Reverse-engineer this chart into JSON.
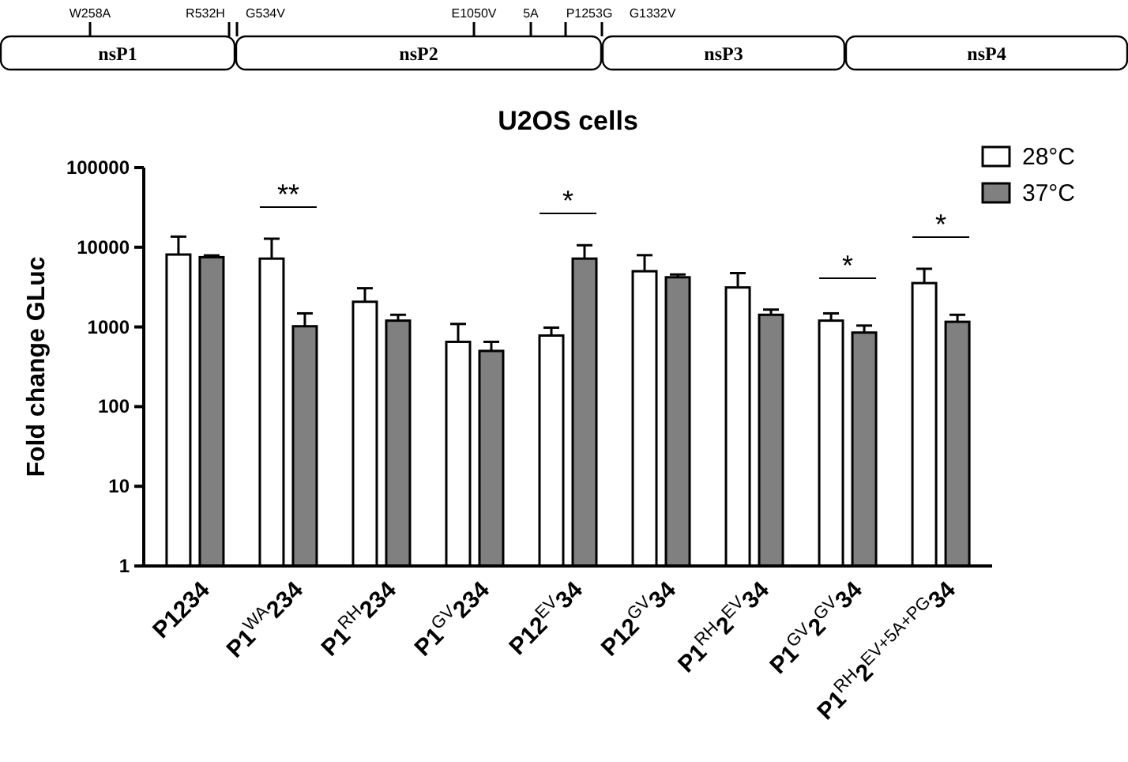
{
  "chart_data": {
    "type": "bar",
    "title": "U2OS cells",
    "ylabel": "Fold change GLuc",
    "categories": [
      "P1234",
      "P1$^{WA}$234",
      "P1$^{RH}$234",
      "P1$^{GV}$234",
      "P12$^{EV}$34",
      "P12$^{GV}$34",
      "P1$^{RH}$2$^{EV}$34",
      "P1$^{GV}$2$^{GV}$34",
      "P1$^{RH}$2$^{EV+5A+PG}$34"
    ],
    "series": [
      {
        "name": "28°C",
        "color": "#ffffff",
        "values": [
          8100,
          7200,
          2070,
          650,
          780,
          5000,
          3130,
          1200,
          3550
        ],
        "errors": [
          [
            8100,
            13600
          ],
          [
            7200,
            12800
          ],
          [
            2070,
            3060
          ],
          [
            650,
            1090
          ],
          [
            780,
            980
          ],
          [
            5000,
            7950
          ],
          [
            3130,
            4740
          ],
          [
            1200,
            1480
          ],
          [
            3550,
            5370
          ]
        ]
      },
      {
        "name": "37°C",
        "color": "#808080",
        "values": [
          7500,
          1020,
          1200,
          500,
          7200,
          4200,
          1420,
          850,
          1160
        ],
        "errors": [
          [
            7500,
            7900
          ],
          [
            1020,
            1480
          ],
          [
            1200,
            1420
          ],
          [
            500,
            650
          ],
          [
            7200,
            10600
          ],
          [
            4200,
            4550
          ],
          [
            1420,
            1650
          ],
          [
            850,
            1040
          ],
          [
            1160,
            1420
          ]
        ]
      }
    ],
    "log": true,
    "ylim": [
      1,
      100000
    ],
    "yticks": [
      1,
      10,
      100,
      1000,
      10000,
      100000
    ],
    "grid": false,
    "legend": "top right",
    "annotations": [
      "nsP1",
      "nsP2",
      "nsP3",
      "nsP4",
      "W258A",
      "R532H",
      "G534V",
      "E1050V",
      "5A",
      "P1253G",
      "G1332V",
      "**",
      "*",
      "*",
      "*"
    ]
  }
}
